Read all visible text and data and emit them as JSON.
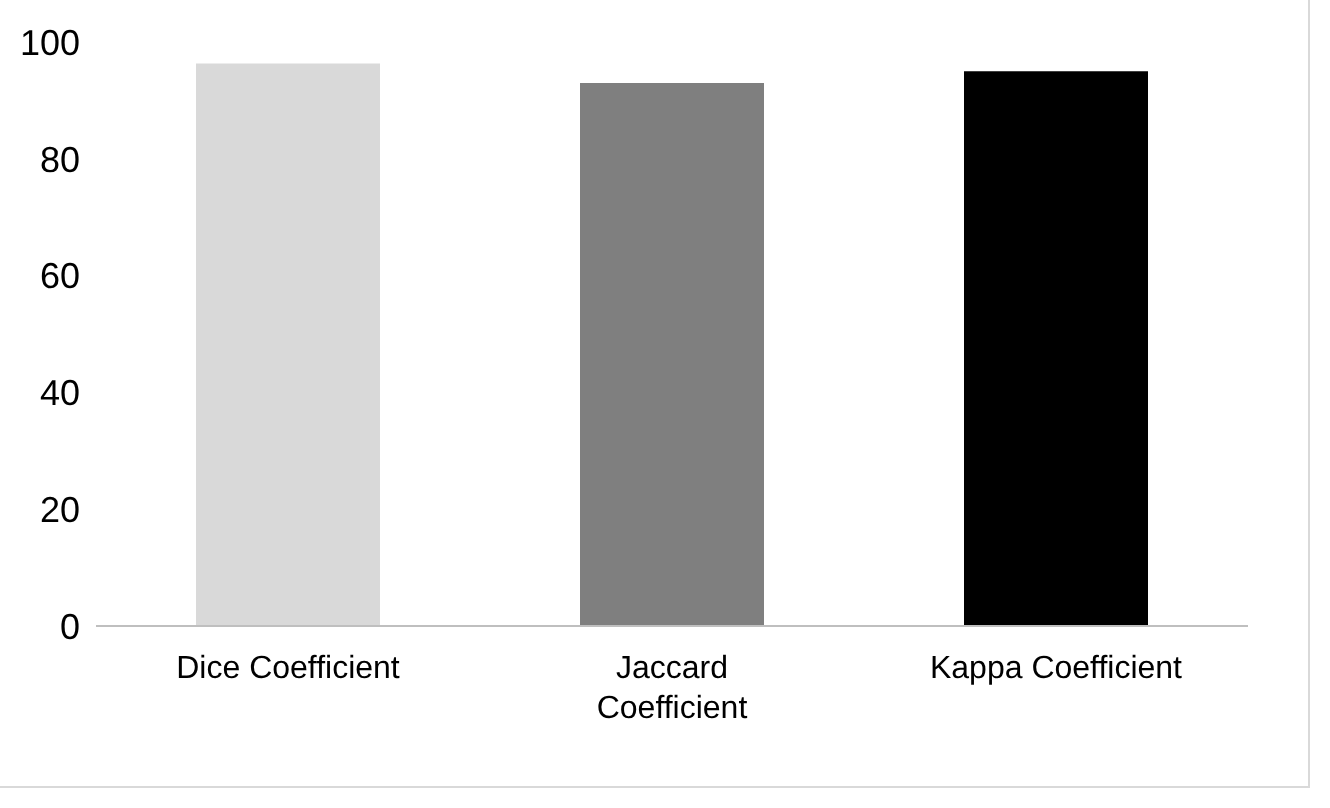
{
  "chart_data": {
    "type": "bar",
    "categories": [
      "Dice Coefficient",
      "Jaccard Coefficient",
      "Kappa Coefficient"
    ],
    "values": [
      96.3,
      93,
      95
    ],
    "colors": [
      "#d9d9d9",
      "#7f7f7f",
      "#000000"
    ],
    "ylim": [
      0,
      100
    ],
    "yticks": [
      0,
      20,
      40,
      60,
      80,
      100
    ],
    "grid": false,
    "legend": false
  }
}
